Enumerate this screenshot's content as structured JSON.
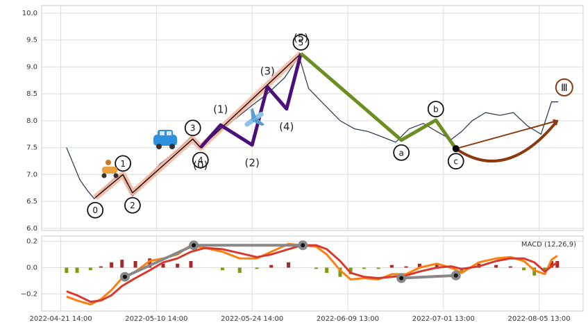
{
  "chart_data": [
    {
      "type": "line",
      "x": [
        6,
        13,
        20,
        28,
        35,
        46,
        57,
        64,
        75,
        89,
        104,
        122,
        136,
        147,
        158,
        169,
        187,
        201,
        216,
        234,
        249,
        259,
        270,
        281,
        292,
        307,
        321,
        336,
        350,
        364,
        379,
        393,
        408,
        419,
        430,
        444,
        459,
        473,
        488,
        502,
        513,
        520
      ],
      "values": [
        7.5,
        7.2,
        6.9,
        6.7,
        6.55,
        6.75,
        6.95,
        7.0,
        6.6,
        6.9,
        7.2,
        7.45,
        7.7,
        7.5,
        7.7,
        7.85,
        8.1,
        8.3,
        8.5,
        8.8,
        9.2,
        8.6,
        8.4,
        8.2,
        8.0,
        7.85,
        7.8,
        7.7,
        7.6,
        7.85,
        7.95,
        7.8,
        7.65,
        7.8,
        8.0,
        8.15,
        8.1,
        8.15,
        7.9,
        7.75,
        8.35,
        8.35
      ],
      "color": "#2f3e56",
      "xlim": [
        -20,
        546
      ],
      "ylim": [
        5.96,
        10.14
      ],
      "yticks": [
        {
          "value": 6,
          "label": "6.0"
        },
        6.5,
        {
          "value": 7,
          "label": "7.0"
        },
        7.5,
        {
          "value": 8,
          "label": "8.0"
        },
        8.5,
        {
          "value": 9,
          "label": "9.0"
        },
        9.5,
        {
          "value": 10,
          "label": "10.0"
        }
      ],
      "grid": true,
      "waves": [
        {
          "style": "halo",
          "color": "#111111",
          "halo_color": "#f6b49b",
          "label_style": "circled",
          "labels": [
            "0",
            "1",
            "2",
            "3",
            "4",
            "5"
          ],
          "x": [
            36,
            65,
            75,
            138,
            146,
            251
          ],
          "values": [
            6.57,
            7.0,
            6.66,
            7.66,
            7.5,
            9.25
          ]
        },
        {
          "style": "line",
          "color": "#4b0f7a",
          "label_style": "plain",
          "labels": [
            "(0)",
            "(1)",
            "(2)",
            "(3)",
            "(4)",
            "(5)"
          ],
          "x": [
            146,
            167,
            200,
            216,
            236,
            251
          ],
          "values": [
            7.5,
            7.92,
            7.55,
            8.63,
            8.22,
            9.25
          ]
        },
        {
          "style": "line",
          "color": "#6b8e23",
          "label_style": "circled",
          "labels": [
            null,
            "a",
            "b",
            "c"
          ],
          "x": [
            251,
            356,
            392,
            413
          ],
          "values": [
            9.25,
            7.64,
            8.01,
            7.48
          ]
        },
        {
          "style": "arrow",
          "color": "#8b3a0f",
          "label_style": "ring",
          "labels": [
            null,
            "Ⅲ"
          ],
          "x": [
            413,
            519
          ],
          "values": [
            7.48,
            8.0
          ]
        }
      ]
    },
    {
      "type": "macd",
      "title": "MACD (12,26,9)",
      "x": [
        6,
        17,
        31,
        42,
        53,
        64,
        78,
        93,
        107,
        122,
        136,
        151,
        169,
        187,
        205,
        220,
        238,
        252,
        267,
        278,
        292,
        303,
        317,
        332,
        346,
        361,
        375,
        393,
        408,
        419,
        437,
        455,
        470,
        484,
        495,
        506,
        513,
        519
      ],
      "series": [
        {
          "color": "#ff7f0e",
          "values": [
            -0.22,
            -0.25,
            -0.28,
            -0.24,
            -0.17,
            -0.08,
            -0.03,
            0.05,
            0.07,
            0.1,
            0.17,
            0.15,
            0.12,
            0.07,
            0.07,
            0.12,
            0.18,
            0.17,
            0.16,
            0.1,
            -0.02,
            -0.09,
            -0.08,
            -0.09,
            -0.05,
            -0.05,
            0.0,
            0.03,
            0.0,
            -0.04,
            0.04,
            0.07,
            0.08,
            0.05,
            -0.02,
            -0.05,
            0.06,
            0.09
          ]
        },
        {
          "color": "#d63a2f",
          "values": [
            -0.18,
            -0.21,
            -0.26,
            -0.25,
            -0.21,
            -0.14,
            -0.08,
            -0.02,
            0.04,
            0.07,
            0.12,
            0.15,
            0.14,
            0.11,
            0.08,
            0.1,
            0.14,
            0.17,
            0.17,
            0.14,
            0.05,
            -0.04,
            -0.07,
            -0.08,
            -0.07,
            -0.06,
            -0.03,
            0.0,
            0.01,
            -0.01,
            0.01,
            0.05,
            0.07,
            0.07,
            0.04,
            -0.03,
            0.01,
            0.04
          ]
        }
      ],
      "histogram": {
        "positive_color": "#a52a2a",
        "negative_color": "#7a9a1a",
        "values": [
          -0.04,
          -0.04,
          -0.02,
          0.01,
          0.04,
          0.06,
          0.05,
          0.07,
          0.03,
          0.03,
          0.05,
          0,
          -0.02,
          -0.04,
          -0.01,
          0.02,
          0.04,
          0,
          -0.01,
          -0.04,
          -0.07,
          -0.05,
          -0.01,
          -0.01,
          0.02,
          0.01,
          0.03,
          0.03,
          -0.01,
          -0.03,
          0.03,
          0.02,
          0.01,
          -0.02,
          -0.06,
          -0.02,
          0.05,
          0.05
        ]
      },
      "divergences": [
        {
          "color": "#888888",
          "x": [
            67,
            139,
            253
          ],
          "values": [
            -0.07,
            0.17,
            0.17
          ]
        },
        {
          "color": "#888888",
          "x": [
            356,
            413
          ],
          "values": [
            -0.08,
            -0.06
          ]
        }
      ],
      "xlim": [
        -20,
        546
      ],
      "ylim": [
        -0.33,
        0.24
      ],
      "xticks": [
        {
          "value": 0,
          "label": "2022-04-21 14:00"
        },
        {
          "value": 100,
          "label": "2022-05-10 14:00"
        },
        {
          "value": 200,
          "label": "2022-05-24 14:00"
        },
        {
          "value": 300,
          "label": "2022-06-09 13:00"
        },
        {
          "value": 400,
          "label": "2022-07-01 13:00"
        },
        {
          "value": 500,
          "label": "2022-08-05 13:00"
        }
      ],
      "yticks": [
        {
          "value": -0.2,
          "label": "−0.2"
        },
        {
          "value": 0,
          "label": "0.0"
        },
        0.2
      ],
      "grid": true
    }
  ]
}
